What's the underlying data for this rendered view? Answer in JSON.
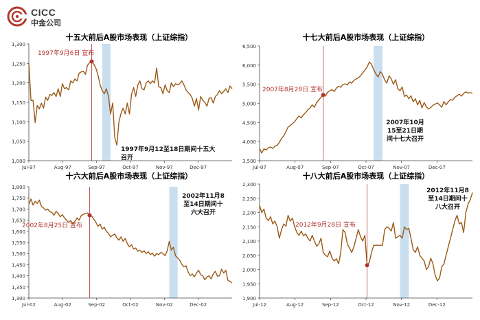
{
  "logo": {
    "name_en": "CICC",
    "name_cn": "中金公司"
  },
  "colors": {
    "line": "#9a5a17",
    "marker_line": "#b2342f",
    "marker_text": "#b2342f",
    "congress_band": "#c9dff0",
    "axis_text": "#333333",
    "annotation_text": "#111111"
  },
  "chart_data": [
    {
      "type": "line",
      "title": "十五大前后A股市场表现（上证综指）",
      "xlabel": "",
      "ylabel": "",
      "x_ticks": [
        "Jul-97",
        "Aug-97",
        "Sep-97",
        "Oct-97",
        "Nov-97",
        "Dec-97"
      ],
      "ylim": [
        1000,
        1300
      ],
      "y_ticks": [
        "1,000",
        "1,050",
        "1,100",
        "1,150",
        "1,200",
        "1,250",
        "1,300"
      ],
      "grid": false,
      "series": [
        {
          "values": [
            1251,
            1155,
            1155,
            1098,
            1142,
            1133,
            1148,
            1135,
            1163,
            1155,
            1170,
            1168,
            1175,
            1165,
            1185,
            1165,
            1198,
            1185,
            1188,
            1182,
            1205,
            1200,
            1210,
            1205,
            1225,
            1228,
            1230,
            1222,
            1245,
            1252,
            1255,
            1248,
            1238,
            1220,
            1195,
            1180,
            1172,
            1185,
            1165,
            1120,
            1148,
            1060,
            1040,
            1100,
            1122,
            1135,
            1120,
            1148,
            1120,
            1170,
            1188,
            1165,
            1195,
            1205,
            1185,
            1182,
            1200,
            1205,
            1198,
            1205,
            1200,
            1238,
            1190,
            1188,
            1172,
            1195,
            1180,
            1175,
            1200,
            1190,
            1198,
            1195,
            1198,
            1205,
            1195,
            1182,
            1175,
            1170,
            1160,
            1140,
            1160,
            1130,
            1165,
            1155,
            1150,
            1140,
            1160,
            1162,
            1148,
            1165,
            1170,
            1180,
            1172,
            1178,
            1185,
            1175,
            1192,
            1185
          ]
        }
      ],
      "marker": {
        "index": 30,
        "label": "1997年9月6日 宣布"
      },
      "congress_band": {
        "start": 35,
        "end": 39
      },
      "annotation": [
        "1997年9月12至18日期间十五大",
        "召开"
      ]
    },
    {
      "type": "line",
      "title": "十七大前后A股市场表现（上证综指）",
      "xlabel": "",
      "ylabel": "",
      "x_ticks": [
        "Jul-07",
        "Aug-07",
        "Sep-07",
        "Oct-07",
        "Nov-07",
        "Dec-07"
      ],
      "ylim": [
        3500,
        6500
      ],
      "y_ticks": [
        "3,500",
        "4,000",
        "4,500",
        "5,000",
        "5,500",
        "6,000",
        "6,500"
      ],
      "grid": false,
      "series": [
        {
          "values": [
            3820,
            3700,
            3810,
            3780,
            3840,
            3860,
            3820,
            3880,
            3900,
            3980,
            4080,
            4150,
            4260,
            4380,
            4420,
            4470,
            4520,
            4600,
            4670,
            4620,
            4700,
            4760,
            4830,
            4880,
            4960,
            4900,
            5020,
            5090,
            5160,
            5220,
            5190,
            5290,
            5330,
            5360,
            5310,
            5400,
            5450,
            5420,
            5490,
            5510,
            5480,
            5560,
            5530,
            5600,
            5640,
            5670,
            5720,
            5800,
            5870,
            5950,
            6080,
            6020,
            5880,
            5770,
            5690,
            5830,
            5760,
            5610,
            5530,
            5720,
            5640,
            5500,
            5620,
            5380,
            5330,
            5430,
            5180,
            5220,
            5120,
            5200,
            5040,
            5120,
            4960,
            5080,
            4880,
            5020,
            4910,
            4850,
            4890,
            4950,
            4980,
            5010,
            4960,
            4900,
            5050,
            4960,
            5040,
            5100,
            5080,
            5160,
            5200,
            5240,
            5190,
            5260,
            5300,
            5270,
            5280,
            5260
          ]
        }
      ],
      "marker": {
        "index": 29,
        "label": "2007年8月28日 宣布"
      },
      "congress_band": {
        "start": 52,
        "end": 56
      },
      "annotation": [
        "2007年10月",
        "15至21日期",
        "间十七大召开"
      ]
    },
    {
      "type": "line",
      "title": "十六大前后A股市场表现（上证综指）",
      "xlabel": "",
      "ylabel": "",
      "x_ticks": [
        "Jul-02",
        "Aug-02",
        "Sep-02",
        "Oct-02",
        "Nov-02",
        "Dec-02"
      ],
      "ylim": [
        1300,
        1800
      ],
      "y_ticks": [
        "1,300",
        "1,350",
        "1,400",
        "1,450",
        "1,500",
        "1,550",
        "1,600",
        "1,650",
        "1,700",
        "1,750",
        "1,800"
      ],
      "grid": false,
      "series": [
        {
          "values": [
            1722,
            1745,
            1718,
            1735,
            1725,
            1740,
            1712,
            1705,
            1695,
            1700,
            1688,
            1685,
            1672,
            1690,
            1680,
            1665,
            1675,
            1660,
            1650,
            1640,
            1648,
            1632,
            1645,
            1660,
            1650,
            1670,
            1676,
            1680,
            1682,
            1672,
            1668,
            1655,
            1640,
            1622,
            1632,
            1610,
            1618,
            1600,
            1590,
            1575,
            1582,
            1588,
            1570,
            1560,
            1575,
            1555,
            1568,
            1545,
            1530,
            1540,
            1520,
            1525,
            1510,
            1515,
            1505,
            1512,
            1500,
            1508,
            1495,
            1502,
            1488,
            1500,
            1495,
            1505,
            1500,
            1490,
            1512,
            1555,
            1515,
            1528,
            1490,
            1480,
            1470,
            1452,
            1440,
            1445,
            1418,
            1400,
            1408,
            1395,
            1412,
            1425,
            1405,
            1400,
            1382,
            1395,
            1400,
            1386,
            1408,
            1420,
            1398,
            1400,
            1430,
            1412,
            1425,
            1380,
            1375,
            1368
          ]
        }
      ],
      "marker": {
        "index": 29,
        "label": "2002年8月25日 宣布"
      },
      "congress_band": {
        "start": 67,
        "end": 71
      },
      "annotation": [
        "2002年11月8",
        "至14日期间十",
        "六大召开"
      ]
    },
    {
      "type": "line",
      "title": "十八大前后A股市场表现（上证综指）",
      "xlabel": "",
      "ylabel": "",
      "x_ticks": [
        "Jul-12",
        "Aug-12",
        "Sep-12",
        "Oct-12",
        "Nov-12",
        "Dec-12"
      ],
      "ylim": [
        1900,
        2300
      ],
      "y_ticks": [
        "1,900",
        "1,950",
        "2,000",
        "2,050",
        "2,100",
        "2,150",
        "2,200",
        "2,250",
        "2,300"
      ],
      "grid": false,
      "series": [
        {
          "values": [
            2225,
            2200,
            2212,
            2180,
            2172,
            2185,
            2160,
            2170,
            2150,
            2110,
            2140,
            2160,
            2152,
            2190,
            2170,
            2180,
            2150,
            2130,
            2120,
            2135,
            2118,
            2125,
            2110,
            2100,
            2120,
            2100,
            2082,
            2090,
            2110,
            2060,
            2050,
            2045,
            2065,
            2040,
            2030,
            2038,
            2020,
            2060,
            2140,
            2130,
            2090,
            2075,
            2060,
            2080,
            2110,
            2140,
            2115,
            2100,
            2120,
            2015,
            2025,
            2060,
            2085,
            2085,
            2085,
            2085,
            2085,
            2140,
            2150,
            2145,
            2135,
            2165,
            2110,
            2115,
            2120,
            2110,
            2150,
            2140,
            2145,
            2110,
            2070,
            2060,
            2080,
            2050,
            2040,
            2030,
            2000,
            2010,
            2040,
            2020,
            1980,
            1960,
            1970,
            2010,
            2020,
            2050,
            2080,
            2110,
            2140,
            2170,
            2190,
            2160,
            2165,
            2130,
            2200,
            2230,
            2245,
            2270
          ]
        }
      ],
      "marker": {
        "index": 49,
        "label": "2012年9月28日 宣布"
      },
      "congress_band": {
        "start": 64,
        "end": 68
      },
      "annotation": [
        "2012年11月8",
        "至14日期间十",
        "八大召开"
      ]
    }
  ]
}
